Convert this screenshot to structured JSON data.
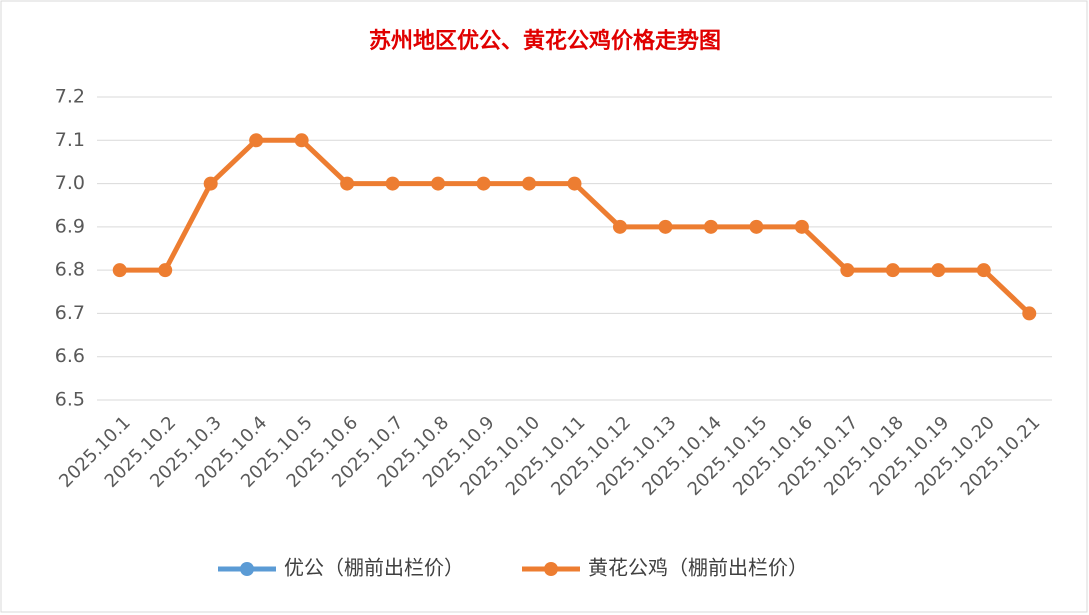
{
  "chart_data": {
    "type": "line",
    "title": "苏州地区优公、黄花公鸡价格走势图",
    "categories": [
      "2025.10.1",
      "2025.10.2",
      "2025.10.3",
      "2025.10.4",
      "2025.10.5",
      "2025.10.6",
      "2025.10.7",
      "2025.10.8",
      "2025.10.9",
      "2025.10.10",
      "2025.10.11",
      "2025.10.12",
      "2025.10.13",
      "2025.10.14",
      "2025.10.15",
      "2025.10.16",
      "2025.10.17",
      "2025.10.18",
      "2025.10.19",
      "2025.10.20",
      "2025.10.21"
    ],
    "series": [
      {
        "name": "优公（棚前出栏价）",
        "color": "#5b9bd5",
        "values": [
          null,
          null,
          null,
          null,
          null,
          null,
          null,
          null,
          null,
          null,
          null,
          null,
          null,
          null,
          null,
          null,
          null,
          null,
          null,
          null,
          null
        ]
      },
      {
        "name": "黄花公鸡（棚前出栏价）",
        "color": "#ed7d31",
        "values": [
          6.8,
          6.8,
          7.0,
          7.1,
          7.1,
          7.0,
          7.0,
          7.0,
          7.0,
          7.0,
          7.0,
          6.9,
          6.9,
          6.9,
          6.9,
          6.9,
          6.8,
          6.8,
          6.8,
          6.8,
          6.7
        ]
      }
    ],
    "ylim": [
      6.5,
      7.2
    ],
    "yticks": [
      6.5,
      6.6,
      6.7,
      6.8,
      6.9,
      {
        "value": 7,
        "label": "7.0"
      },
      7.1,
      7.2
    ],
    "grid": true,
    "legend": "bottom"
  }
}
